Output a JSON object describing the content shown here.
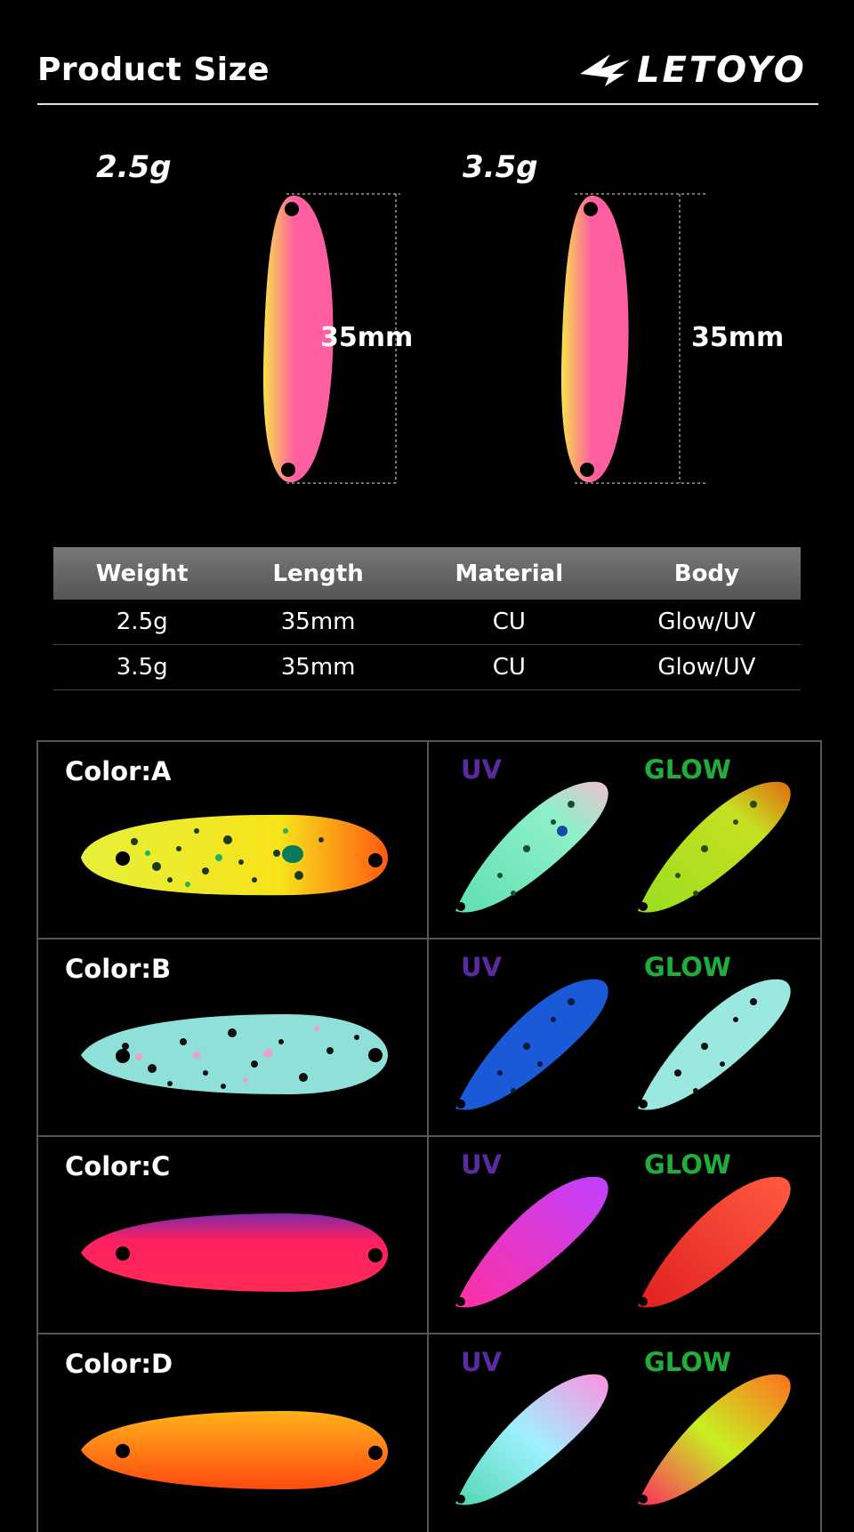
{
  "header": {
    "title": "Product Size",
    "brand": "LETOYO"
  },
  "sizes": [
    {
      "weight": "2.5g",
      "length": "35mm"
    },
    {
      "weight": "3.5g",
      "length": "35mm"
    }
  ],
  "spec_table": {
    "headers": [
      "Weight",
      "Length",
      "Material",
      "Body"
    ],
    "rows": [
      [
        "2.5g",
        "35mm",
        "CU",
        "Glow/UV"
      ],
      [
        "3.5g",
        "35mm",
        "CU",
        "Glow/UV"
      ]
    ]
  },
  "colors": [
    {
      "label": "Color:A",
      "uv": "UV",
      "glow": "GLOW"
    },
    {
      "label": "Color:B",
      "uv": "UV",
      "glow": "GLOW"
    },
    {
      "label": "Color:C",
      "uv": "UV",
      "glow": "GLOW"
    },
    {
      "label": "Color:D",
      "uv": "UV",
      "glow": "GLOW"
    }
  ],
  "palette": {
    "uv_label": "#5a2aa0",
    "glow_label": "#1fae3a",
    "table_header": "#666666"
  }
}
